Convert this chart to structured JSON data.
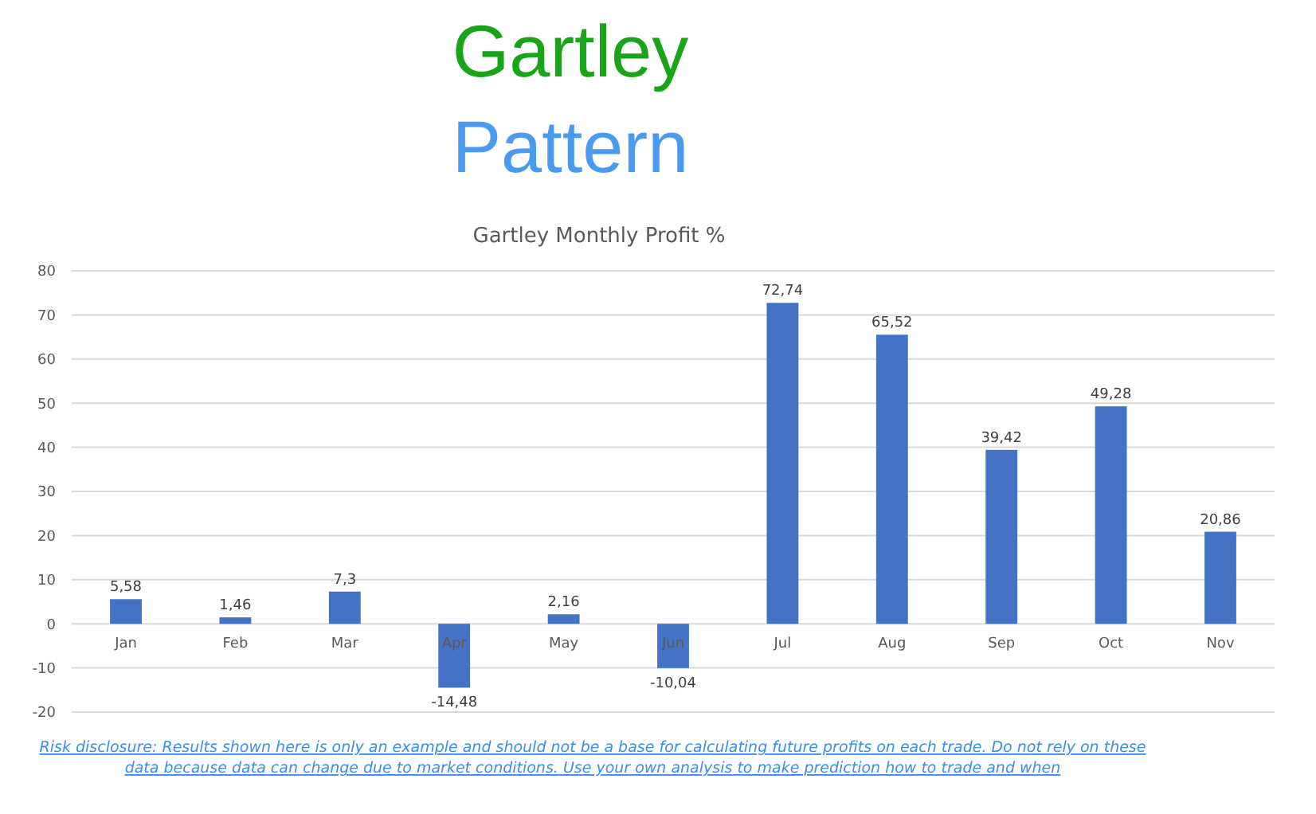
{
  "chart_data": {
    "type": "bar",
    "title": "Gartley Monthly Profit %",
    "categories": [
      "Jan",
      "Feb",
      "Mar",
      "Apr",
      "May",
      "Jun",
      "Jul",
      "Aug",
      "Sep",
      "Oct",
      "Nov"
    ],
    "values": [
      5.58,
      1.46,
      7.3,
      -14.48,
      2.16,
      -10.04,
      72.74,
      65.52,
      39.42,
      49.28,
      20.86
    ],
    "value_labels": [
      "5,58",
      "1,46",
      "7,3",
      "-14,48",
      "2,16",
      "-10,04",
      "72,74",
      "65,52",
      "39,42",
      "49,28",
      "20,86"
    ],
    "color": "#4472c4",
    "ylim": [
      -20,
      80
    ],
    "yticks": [
      -20,
      -10,
      0,
      10,
      20,
      30,
      40,
      50,
      60,
      70,
      80
    ],
    "grid": "y",
    "annotations": [
      "Gartley",
      "Pattern",
      "Risk disclosure: Results shown here is only an example and should not be a base for calculating future profits on each trade. Do not rely on these data because data can change due to market conditions. Use your own analysis to make prediction how to trade and when"
    ]
  }
}
